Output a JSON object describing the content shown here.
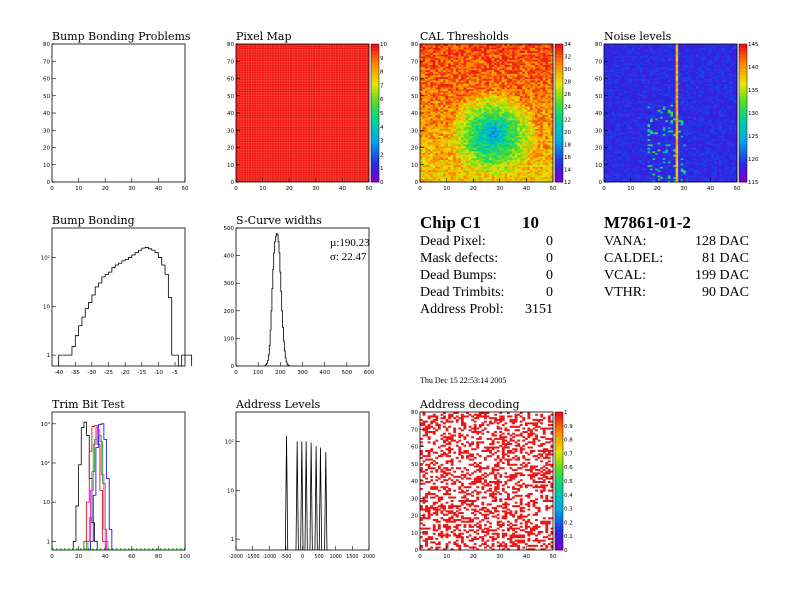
{
  "colors": {
    "axis": "#000000",
    "bump_red": "#ff2a1a",
    "noise_stripe": "#ffd000",
    "address_red": "#e81818"
  },
  "panels": {
    "bump_problems": {
      "title": "Bump Bonding Problems"
    },
    "pixel_map": {
      "title": "Pixel Map"
    },
    "cal_thresholds": {
      "title": "CAL Thresholds"
    },
    "noise": {
      "title": "Noise levels"
    },
    "bump_bonding": {
      "title": "Bump Bonding"
    },
    "scurve": {
      "title": "S-Curve widths",
      "mu": "µ:190.23",
      "sigma": "σ: 22.47"
    },
    "trim": {
      "title": "Trim Bit Test"
    },
    "address_levels": {
      "title": "Address Levels"
    },
    "address_decoding": {
      "title": "Address decoding"
    }
  },
  "chip_info": {
    "title": "Chip C1",
    "chip_number": "10",
    "rows": [
      {
        "label": "Dead Pixel:",
        "value": "0"
      },
      {
        "label": "Mask defects:",
        "value": "0"
      },
      {
        "label": "Dead Bumps:",
        "value": "0"
      },
      {
        "label": "Dead Trimbits:",
        "value": "0"
      },
      {
        "label": "Address Probl:",
        "value": "3151"
      }
    ]
  },
  "module_info": {
    "title": "M7861-01-2",
    "rows": [
      {
        "label": "VANA:",
        "value": "128 DAC"
      },
      {
        "label": "CALDEL:",
        "value": "81 DAC"
      },
      {
        "label": "VCAL:",
        "value": "199 DAC"
      },
      {
        "label": "VTHR:",
        "value": "90 DAC"
      }
    ]
  },
  "timestamp": "Thu Dec 15 22:53:14 2005",
  "chart_data": [
    {
      "type": "heatmap",
      "title": "Bump Bonding Problems",
      "xlim": [
        0,
        52
      ],
      "ylim": [
        0,
        80
      ],
      "xticks": [
        "0",
        "10",
        "20",
        "30",
        "40",
        "50"
      ],
      "yticks": [
        "0",
        "10",
        "20",
        "30",
        "40",
        "50",
        "60",
        "70",
        "80"
      ],
      "fill": "empty"
    },
    {
      "type": "heatmap",
      "title": "Pixel Map",
      "xlim": [
        0,
        52
      ],
      "ylim": [
        0,
        80
      ],
      "xticks": [
        "0",
        "10",
        "20",
        "30",
        "40",
        "50"
      ],
      "yticks": [
        "0",
        "10",
        "20",
        "30",
        "40",
        "50",
        "60",
        "70",
        "80"
      ],
      "zlim": [
        0,
        10
      ],
      "zticks": [
        "0",
        "1",
        "2",
        "3",
        "4",
        "5",
        "6",
        "7",
        "8",
        "9",
        "10"
      ],
      "uniform_value": 10
    },
    {
      "type": "heatmap",
      "title": "CAL Thresholds",
      "xlim": [
        0,
        52
      ],
      "ylim": [
        0,
        80
      ],
      "xticks": [
        "0",
        "10",
        "20",
        "30",
        "40",
        "50"
      ],
      "yticks": [
        "0",
        "10",
        "20",
        "30",
        "40",
        "50",
        "60",
        "70",
        "80"
      ],
      "zlim": [
        12,
        34
      ],
      "zticks": [
        "12",
        "14",
        "16",
        "18",
        "20",
        "22",
        "24",
        "26",
        "28",
        "30",
        "32",
        "34"
      ]
    },
    {
      "type": "heatmap",
      "title": "Noise levels",
      "xlim": [
        0,
        52
      ],
      "ylim": [
        0,
        80
      ],
      "xticks": [
        "0",
        "10",
        "20",
        "30",
        "40",
        "50"
      ],
      "yticks": [
        "0",
        "10",
        "20",
        "30",
        "40",
        "50",
        "60",
        "70",
        "80"
      ],
      "zlim": [
        113,
        148
      ],
      "zticks": [
        "115",
        "120",
        "125",
        "130",
        "135",
        "140",
        "145"
      ],
      "hot_column": 28
    },
    {
      "type": "bar",
      "title": "Bump Bonding",
      "xlim": [
        -42,
        -2
      ],
      "log_y": true,
      "xticks": [
        "-40",
        "-35",
        "-30",
        "-25",
        "-20",
        "-15",
        "-10",
        "-5"
      ],
      "yticks": [
        "1",
        "10",
        "10²"
      ],
      "x_start": -40,
      "bin_width": 1,
      "values": [
        1,
        1,
        1,
        1,
        1.5,
        2.5,
        4,
        6,
        9,
        12,
        17,
        25,
        30,
        40,
        45,
        50,
        62,
        70,
        76,
        85,
        90,
        100,
        112,
        125,
        140,
        155,
        160,
        150,
        140,
        125,
        100,
        70,
        45,
        15,
        1,
        1,
        0,
        1,
        1,
        1
      ]
    },
    {
      "type": "bar",
      "title": "S-Curve widths",
      "xlim": [
        0,
        600
      ],
      "ylim": [
        0,
        500
      ],
      "xticks": [
        "0",
        "100",
        "200",
        "300",
        "400",
        "500",
        "600"
      ],
      "yticks": [
        "0",
        "100",
        "200",
        "300",
        "400",
        "500"
      ],
      "x_start": 130,
      "bin_width": 4,
      "values": [
        2,
        5,
        10,
        20,
        40,
        75,
        130,
        200,
        280,
        350,
        410,
        450,
        470,
        480,
        475,
        450,
        410,
        340,
        270,
        200,
        140,
        90,
        55,
        30,
        15,
        7,
        3,
        1
      ],
      "mean": "190.23",
      "sigma": "22.47"
    },
    {
      "type": "line",
      "title": "Trim Bit Test",
      "xlim": [
        0,
        100
      ],
      "log_y": true,
      "xticks": [
        "0",
        "20",
        "40",
        "60",
        "80",
        "100"
      ],
      "yticks": [
        "1",
        "10",
        "10²",
        "10³"
      ],
      "series": [
        {
          "color": "#000000",
          "x": [
            17,
            19,
            21,
            23,
            25,
            27,
            29,
            31,
            33
          ],
          "values": [
            1,
            8,
            90,
            800,
            1100,
            500,
            40,
            3,
            1
          ]
        },
        {
          "color": "#e00000",
          "x": [
            25,
            27,
            29,
            31,
            33,
            35,
            37,
            39
          ],
          "values": [
            1,
            10,
            200,
            850,
            900,
            300,
            20,
            1
          ]
        },
        {
          "color": "#00b000",
          "x": [
            27,
            29,
            31,
            33,
            35,
            37,
            39,
            41
          ],
          "values": [
            1,
            4,
            60,
            400,
            700,
            350,
            30,
            1
          ]
        },
        {
          "color": "#0000e0",
          "x": [
            30,
            32,
            34,
            36,
            38,
            40,
            42,
            44
          ],
          "values": [
            1,
            15,
            250,
            950,
            1000,
            400,
            40,
            2
          ]
        },
        {
          "color": "#ff00ff",
          "x": [
            28,
            30,
            32,
            34,
            36,
            38,
            40
          ],
          "values": [
            1,
            20,
            300,
            800,
            500,
            50,
            2
          ]
        }
      ]
    },
    {
      "type": "bar",
      "title": "Address Levels",
      "xlim": [
        -2000,
        2000
      ],
      "log_y": true,
      "xticks": [
        "-2000",
        "-1500",
        "-1000",
        "-500",
        "0",
        "500",
        "1000",
        "1500",
        "2000"
      ],
      "yticks": [
        "1",
        "10",
        "10²"
      ],
      "spikes": [
        {
          "x": -480,
          "v": 130
        },
        {
          "x": -160,
          "v": 100
        },
        {
          "x": -20,
          "v": 100
        },
        {
          "x": 110,
          "v": 100
        },
        {
          "x": 260,
          "v": 95
        },
        {
          "x": 410,
          "v": 80
        },
        {
          "x": 540,
          "v": 75
        },
        {
          "x": 700,
          "v": 60
        }
      ]
    },
    {
      "type": "heatmap",
      "title": "Address decoding",
      "xlim": [
        0,
        52
      ],
      "ylim": [
        0,
        80
      ],
      "xticks": [
        "0",
        "10",
        "20",
        "30",
        "40",
        "50"
      ],
      "yticks": [
        "0",
        "10",
        "20",
        "30",
        "40",
        "50",
        "60",
        "70",
        "80"
      ],
      "zlim": [
        0,
        1
      ],
      "zticks": [
        "0",
        "0.1",
        "0.2",
        "0.3",
        "0.4",
        "0.5",
        "0.6",
        "0.7",
        "0.8",
        "0.9",
        "1"
      ],
      "fraction_bad": 0.37
    }
  ]
}
